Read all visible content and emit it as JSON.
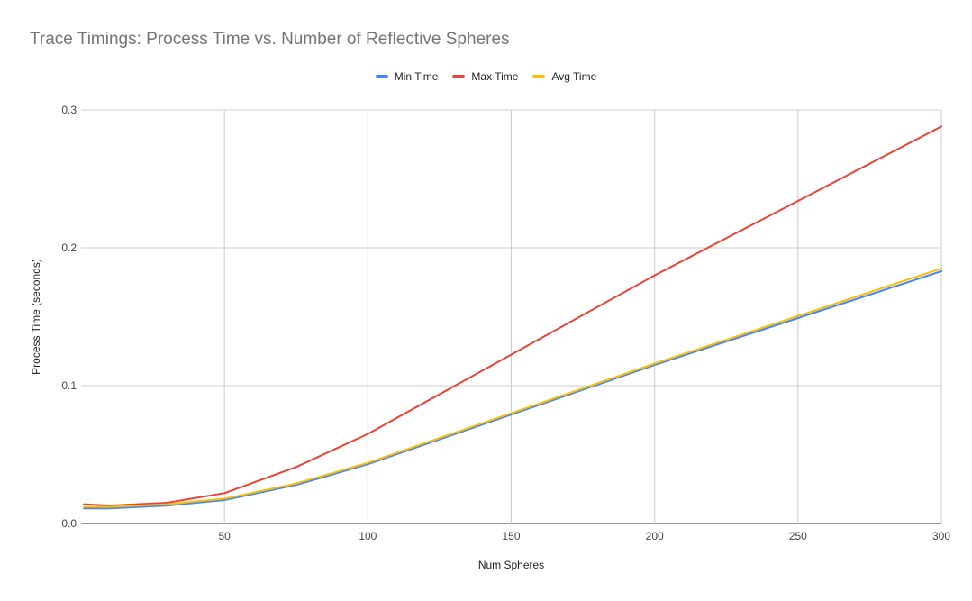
{
  "chart_data": {
    "type": "line",
    "title": "Trace Timings: Process Time vs. Number of Reflective Spheres",
    "xlabel": "Num Spheres",
    "ylabel": "Process Time (seconds)",
    "xlim": [
      0,
      300
    ],
    "ylim": [
      0,
      0.3
    ],
    "xticks": [
      "50",
      "100",
      "150",
      "200",
      "250",
      "300"
    ],
    "yticks": [
      "0.0",
      "0.1",
      "0.2",
      "0.3"
    ],
    "grid": true,
    "legend_position": "top",
    "series": [
      {
        "name": "Min Time",
        "color": "#4285f4",
        "points": [
          [
            1,
            0.011
          ],
          [
            10,
            0.011
          ],
          [
            30,
            0.013
          ],
          [
            50,
            0.017
          ],
          [
            75,
            0.028
          ],
          [
            100,
            0.043
          ],
          [
            200,
            0.115
          ],
          [
            300,
            0.183
          ]
        ]
      },
      {
        "name": "Max Time",
        "color": "#ea4335",
        "points": [
          [
            1,
            0.014
          ],
          [
            10,
            0.013
          ],
          [
            30,
            0.015
          ],
          [
            50,
            0.022
          ],
          [
            75,
            0.041
          ],
          [
            100,
            0.065
          ],
          [
            200,
            0.18
          ],
          [
            300,
            0.288
          ]
        ]
      },
      {
        "name": "Avg Time",
        "color": "#fbbc04",
        "points": [
          [
            1,
            0.012
          ],
          [
            10,
            0.012
          ],
          [
            30,
            0.014
          ],
          [
            50,
            0.018
          ],
          [
            75,
            0.029
          ],
          [
            100,
            0.044
          ],
          [
            200,
            0.116
          ],
          [
            300,
            0.185
          ]
        ]
      }
    ]
  }
}
